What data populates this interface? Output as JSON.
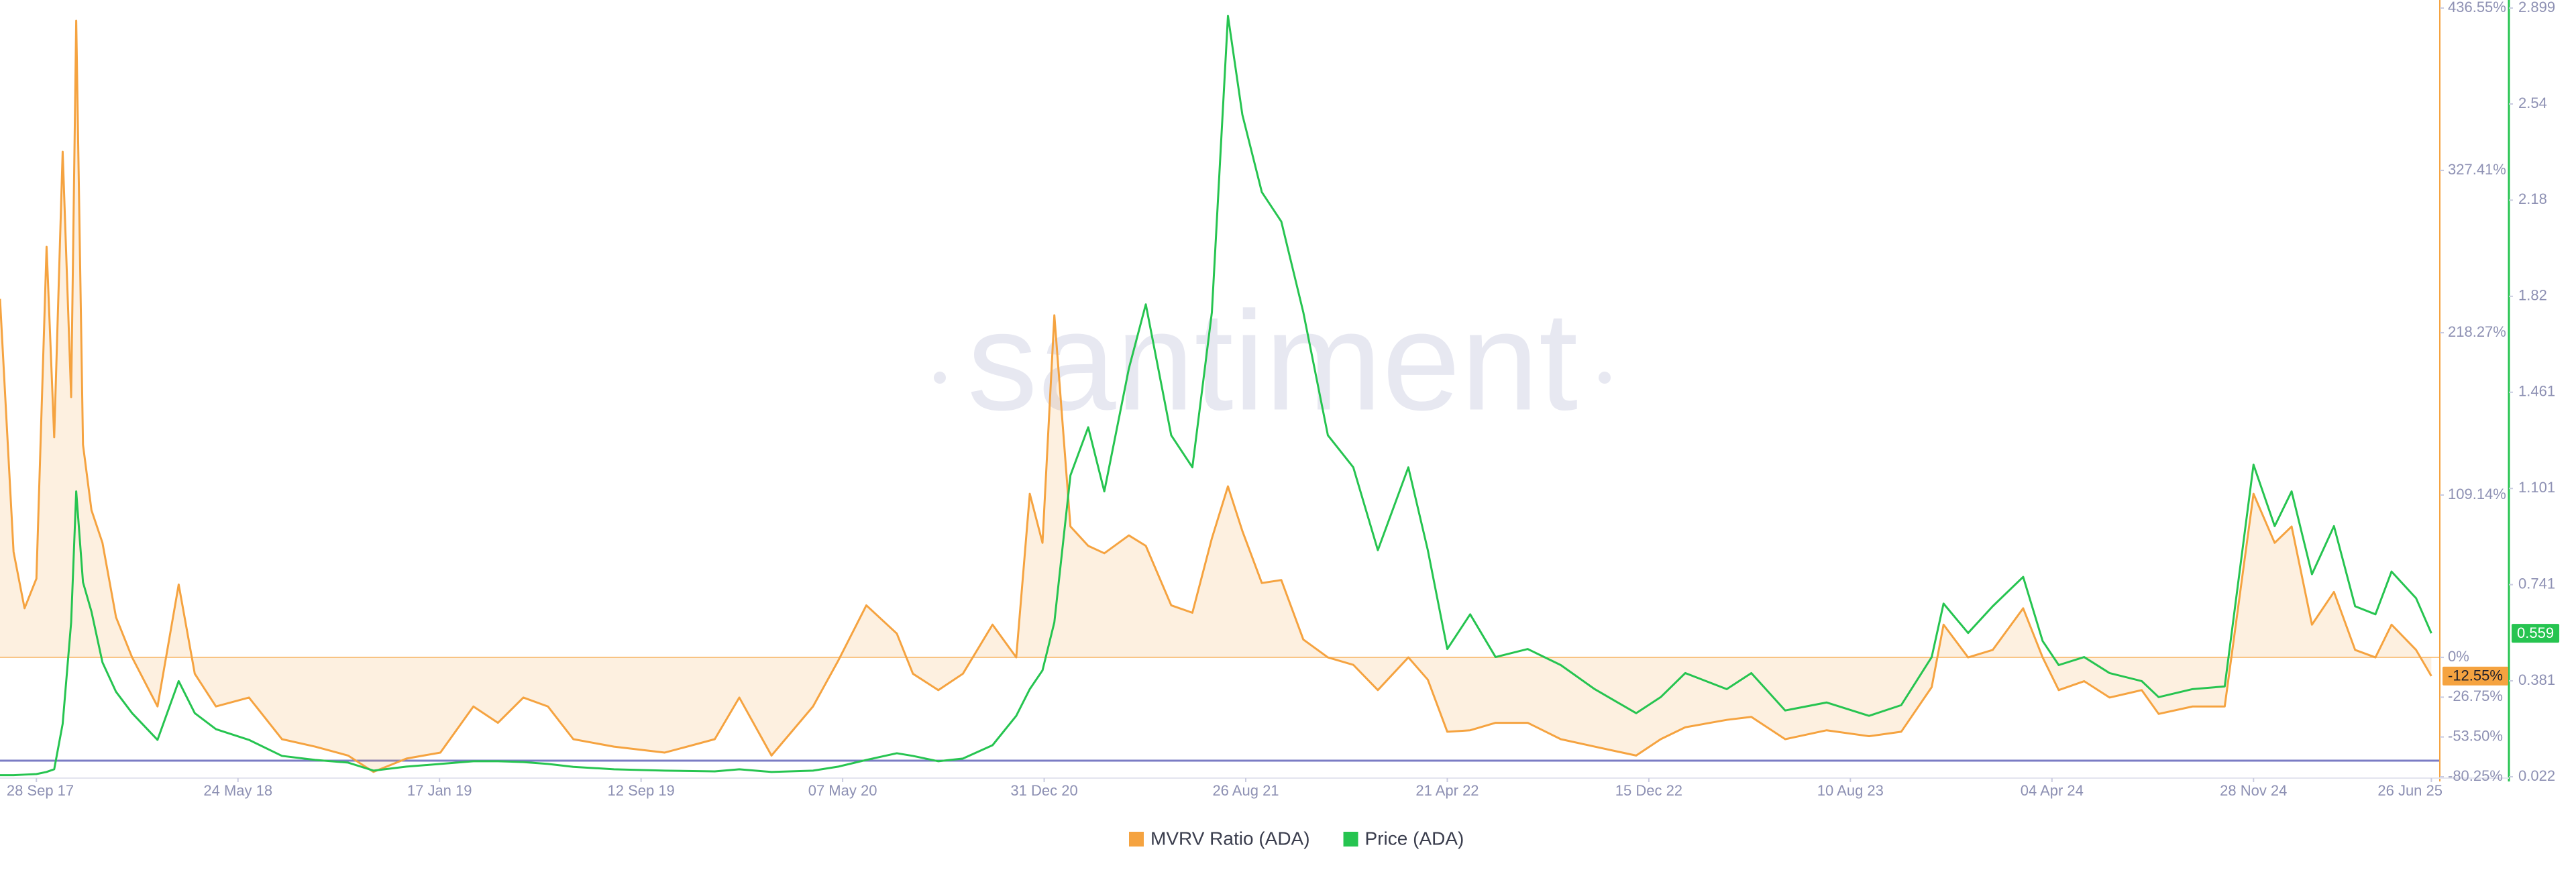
{
  "chart_data": {
    "type": "line",
    "watermark": "santiment",
    "x": [
      "2017-08-16",
      "2017-09-01",
      "2017-09-14",
      "2017-09-28",
      "2017-10-10",
      "2017-10-19",
      "2017-10-29",
      "2017-11-08",
      "2017-11-14",
      "2017-11-22",
      "2017-12-02",
      "2017-12-15",
      "2017-12-31",
      "2018-01-19",
      "2018-02-18",
      "2018-03-15",
      "2018-04-03",
      "2018-04-28",
      "2018-06-06",
      "2018-07-15",
      "2018-08-23",
      "2018-10-01",
      "2018-10-31",
      "2018-12-09",
      "2019-01-18",
      "2019-02-26",
      "2019-03-27",
      "2019-04-26",
      "2019-05-25",
      "2019-06-24",
      "2019-08-11",
      "2019-10-10",
      "2019-12-08",
      "2020-01-06",
      "2020-02-13",
      "2020-04-02",
      "2020-05-02",
      "2020-06-04",
      "2020-07-10",
      "2020-07-29",
      "2020-08-28",
      "2020-09-26",
      "2020-10-31",
      "2020-11-28",
      "2020-12-14",
      "2020-12-29",
      "2021-01-12",
      "2021-01-31",
      "2021-02-21",
      "2021-03-12",
      "2021-04-10",
      "2021-04-30",
      "2021-05-30",
      "2021-06-24",
      "2021-07-17",
      "2021-08-05",
      "2021-08-22",
      "2021-09-14",
      "2021-10-07",
      "2021-11-02",
      "2021-12-01",
      "2021-12-31",
      "2022-01-29",
      "2022-03-06",
      "2022-03-29",
      "2022-04-21",
      "2022-05-18",
      "2022-06-17",
      "2022-07-25",
      "2022-09-02",
      "2022-10-12",
      "2022-11-30",
      "2022-12-29",
      "2023-01-27",
      "2023-03-17",
      "2023-04-15",
      "2023-05-25",
      "2023-07-13",
      "2023-09-01",
      "2023-10-09",
      "2023-11-14",
      "2023-11-28",
      "2023-12-27",
      "2024-01-25",
      "2024-03-01",
      "2024-03-24",
      "2024-04-12",
      "2024-05-12",
      "2024-06-11",
      "2024-07-19",
      "2024-08-08",
      "2024-09-17",
      "2024-10-25",
      "2024-11-28",
      "2024-12-23",
      "2025-01-12",
      "2025-02-05",
      "2025-03-03",
      "2025-03-28",
      "2025-04-21",
      "2025-05-10",
      "2025-06-08",
      "2025-06-26"
    ],
    "xlim": [
      "2017-08-16",
      "2025-07-06"
    ],
    "xticks": [
      {
        "value": "2017-09-28",
        "label": "28 Sep 17"
      },
      {
        "value": "2018-05-24",
        "label": "24 May 18"
      },
      {
        "value": "2019-01-17",
        "label": "17 Jan 19"
      },
      {
        "value": "2019-09-12",
        "label": "12 Sep 19"
      },
      {
        "value": "2020-05-07",
        "label": "07 May 20"
      },
      {
        "value": "2020-12-31",
        "label": "31 Dec 20"
      },
      {
        "value": "2021-08-26",
        "label": "26 Aug 21"
      },
      {
        "value": "2022-04-21",
        "label": "21 Apr 22"
      },
      {
        "value": "2022-12-15",
        "label": "15 Dec 22"
      },
      {
        "value": "2023-08-10",
        "label": "10 Aug 23"
      },
      {
        "value": "2024-04-04",
        "label": "04 Apr 24"
      },
      {
        "value": "2024-11-28",
        "label": "28 Nov 24"
      },
      {
        "value": "2025-06-26",
        "label": "26 Jun 25"
      }
    ],
    "ylim": [
      -80.25,
      436.55
    ],
    "yticks": [
      {
        "value": -80.25,
        "label": "-80.25%"
      },
      {
        "value": -53.5,
        "label": "-53.50%"
      },
      {
        "value": -26.75,
        "label": "-26.75%"
      },
      {
        "value": 0,
        "label": "0%"
      },
      {
        "value": 109.14,
        "label": "109.14%"
      },
      {
        "value": 218.27,
        "label": "218.27%"
      },
      {
        "value": 327.41,
        "label": "327.41%"
      },
      {
        "value": 436.55,
        "label": "436.55%"
      }
    ],
    "y2lim": [
      0.022,
      2.899
    ],
    "y2ticks": [
      0.022,
      0.381,
      0.741,
      1.101,
      1.461,
      1.82,
      2.18,
      2.54,
      2.899
    ],
    "series": [
      {
        "name": "MVRV Ratio (ADA)",
        "color": "#f5a340",
        "area": true,
        "values": [
          241,
          71,
          33,
          53,
          276,
          148,
          340,
          175,
          428,
          143,
          99,
          77,
          27,
          0,
          -33,
          49,
          -11,
          -33,
          -27,
          -55,
          -60,
          -66,
          -77,
          -68,
          -64,
          -33,
          -44,
          -27,
          -33,
          -55,
          -60,
          -64,
          -55,
          -27,
          -66,
          -33,
          -2,
          35,
          16,
          -11,
          -22,
          -11,
          22,
          0,
          110,
          77,
          230,
          88,
          75,
          70,
          82,
          75,
          35,
          30,
          80,
          115,
          85,
          50,
          52,
          12,
          0,
          -5,
          -22,
          0,
          -15,
          -50,
          -49,
          -44,
          -44,
          -55,
          -60,
          -66,
          -55,
          -47,
          -42,
          -40,
          -55,
          -49,
          -53,
          -50,
          -20,
          22,
          0,
          5,
          33,
          0,
          -22,
          -16,
          -27,
          -22,
          -38,
          -33,
          -33,
          110,
          77,
          88,
          22,
          44,
          5,
          0,
          22,
          5,
          -12.55
        ],
        "value_labels": [
          null,
          null,
          null,
          null,
          null,
          null,
          null,
          null,
          null,
          null,
          null,
          null,
          null,
          null,
          null,
          null,
          null,
          null,
          null,
          null,
          null,
          null,
          null,
          null,
          null,
          null,
          null,
          null,
          null,
          null,
          null,
          null,
          null,
          null,
          null,
          null,
          null,
          null,
          null,
          null,
          null,
          null,
          null,
          null,
          null,
          null,
          null,
          null,
          null,
          null,
          null,
          null,
          null,
          null,
          null,
          null,
          null,
          null,
          null,
          null,
          null,
          null,
          null,
          null,
          null,
          null,
          null,
          null,
          null,
          null,
          null,
          null,
          null,
          null,
          null,
          null,
          null,
          null,
          null,
          null,
          null,
          null,
          null,
          null,
          null,
          null,
          null,
          null,
          null,
          null,
          null,
          null,
          null,
          null,
          null,
          null,
          null,
          null,
          null,
          null,
          null,
          null,
          "-12.55%"
        ]
      },
      {
        "name": "Price (ADA)",
        "color": "#26c450",
        "axis": "y2",
        "values": [
          0.028,
          0.028,
          0.03,
          0.032,
          0.04,
          0.05,
          0.22,
          0.6,
          1.09,
          0.75,
          0.64,
          0.45,
          0.34,
          0.26,
          0.16,
          0.38,
          0.26,
          0.2,
          0.16,
          0.1,
          0.085,
          0.075,
          0.045,
          0.06,
          0.07,
          0.08,
          0.08,
          0.077,
          0.07,
          0.059,
          0.05,
          0.045,
          0.042,
          0.05,
          0.04,
          0.045,
          0.06,
          0.085,
          0.11,
          0.1,
          0.08,
          0.09,
          0.14,
          0.25,
          0.35,
          0.42,
          0.6,
          1.15,
          1.33,
          1.09,
          1.55,
          1.79,
          1.3,
          1.18,
          1.76,
          2.87,
          2.5,
          2.21,
          2.1,
          1.76,
          1.3,
          1.18,
          0.87,
          1.18,
          0.87,
          0.5,
          0.63,
          0.47,
          0.5,
          0.44,
          0.35,
          0.26,
          0.32,
          0.41,
          0.35,
          0.41,
          0.27,
          0.3,
          0.25,
          0.29,
          0.47,
          0.67,
          0.56,
          0.66,
          0.77,
          0.53,
          0.44,
          0.47,
          0.41,
          0.38,
          0.32,
          0.35,
          0.36,
          1.19,
          0.96,
          1.09,
          0.78,
          0.96,
          0.66,
          0.63,
          0.79,
          0.69,
          0.559
        ]
      }
    ],
    "legend": "bottom"
  }
}
